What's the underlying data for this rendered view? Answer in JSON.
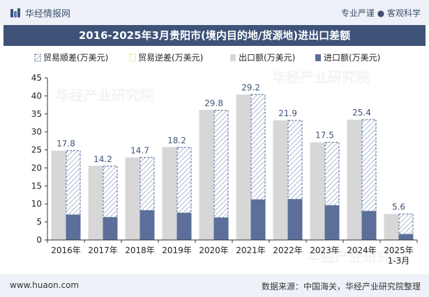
{
  "header": {
    "brand": "华经情报网",
    "tagline": "专业严谨 ● 客观科学"
  },
  "footer": {
    "website": "www.huaon.com",
    "source": "数据来源：中国海关，华经产业研究院整理"
  },
  "watermark": "华经产业研究院",
  "colors": {
    "export": "#d7d7d7",
    "import": "#5b6f9a",
    "surplus": "#4f6a96",
    "deficit": "#e8c86a",
    "label": "#3f5379",
    "title_bg": "#3f5379"
  },
  "chart_data": {
    "type": "bar",
    "title": "2016-2025年3月贵阳市(境内目的地/货源地)进出口差额",
    "categories": [
      "2016年",
      "2017年",
      "2018年",
      "2019年",
      "2020年",
      "2021年",
      "2022年",
      "2023年",
      "2024年",
      "2025年\n1-3月"
    ],
    "series": [
      {
        "name": "贸易顺差(万美元)",
        "values": [
          17.8,
          14.2,
          14.7,
          18.2,
          29.8,
          29.2,
          21.9,
          17.5,
          25.4,
          5.6
        ]
      },
      {
        "name": "贸易逆差(万美元)",
        "values": [
          0,
          0,
          0,
          0,
          0,
          0,
          0,
          0,
          0,
          0
        ]
      },
      {
        "name": "出口额(万美元)",
        "values": [
          24.8,
          20.6,
          22.9,
          25.8,
          36.1,
          40.4,
          33.2,
          27.1,
          33.4,
          7.2
        ]
      },
      {
        "name": "进口额(万美元)",
        "values": [
          7.0,
          6.3,
          8.2,
          7.5,
          6.2,
          11.2,
          11.3,
          9.6,
          8.0,
          1.6
        ]
      }
    ],
    "ylim": [
      0,
      45
    ],
    "yticks": [
      0,
      5,
      10,
      15,
      20,
      25,
      30,
      35,
      40,
      45
    ],
    "legend_position": "top",
    "grid": false
  }
}
